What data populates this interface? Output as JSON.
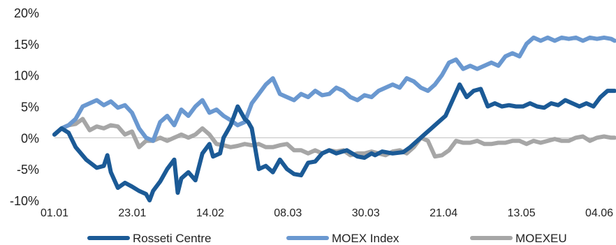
{
  "chart_data": {
    "type": "line",
    "title": "",
    "xlabel": "",
    "ylabel": "",
    "ylim": [
      -10,
      20
    ],
    "y_ticks": [
      20,
      15,
      10,
      5,
      0,
      -5,
      -10
    ],
    "y_tick_labels": [
      "20%",
      "15%",
      "10%",
      "5%",
      "0%",
      "-5%",
      "-10%"
    ],
    "x_ticks": [
      "01.01",
      "23.01",
      "14.02",
      "08.03",
      "30.03",
      "21.04",
      "13.05",
      "04.06"
    ],
    "grid": false,
    "legend_position": "bottom",
    "series": [
      {
        "name": "Rosseti Centre",
        "color": "#1b5a96",
        "x": [
          0,
          2,
          4,
          6,
          9,
          12,
          14,
          15,
          16,
          18,
          20,
          22,
          24,
          26,
          27,
          28,
          30,
          32,
          34,
          35,
          36,
          38,
          40,
          42,
          44,
          45,
          47,
          48,
          49,
          50,
          52,
          54,
          55,
          56,
          58,
          60,
          62,
          64,
          66,
          68,
          70,
          72,
          74,
          76,
          78,
          80,
          83,
          86,
          88,
          90,
          91,
          93,
          96,
          99,
          101,
          103,
          105,
          107,
          109,
          111,
          113,
          115,
          117,
          119,
          121,
          123,
          125,
          127,
          129,
          131,
          133,
          135,
          137,
          139,
          141,
          143,
          145,
          147,
          149,
          151,
          153,
          155,
          157,
          159
        ],
        "values": [
          0.5,
          1.5,
          0.8,
          -1.5,
          -3.5,
          -4.8,
          -4.5,
          -2.8,
          -5.5,
          -8.0,
          -7.2,
          -7.8,
          -8.5,
          -9.0,
          -10.0,
          -8.5,
          -7.0,
          -5.0,
          -3.5,
          -8.8,
          -6.5,
          -5.5,
          -6.8,
          -2.5,
          -1.0,
          -3.0,
          -2.5,
          0.0,
          1.0,
          2.0,
          5.0,
          3.0,
          2.5,
          1.5,
          -5.0,
          -4.5,
          -5.5,
          -3.5,
          -5.0,
          -5.8,
          -6.0,
          -4.0,
          -3.8,
          -2.5,
          -2.0,
          -2.5,
          -2.0,
          -3.0,
          -3.2,
          -2.5,
          -2.8,
          -2.2,
          -2.5,
          -2.3,
          -1.5,
          -0.5,
          0.5,
          1.5,
          2.5,
          3.5,
          6.0,
          8.5,
          6.5,
          7.5,
          7.8,
          5.0,
          5.5,
          5.0,
          5.2,
          5.0,
          5.0,
          5.5,
          5.0,
          4.8,
          5.5,
          5.2,
          6.0,
          5.5,
          5.0,
          5.5,
          5.0,
          6.5,
          7.5,
          7.5
        ]
      },
      {
        "name": "MOEX Index",
        "color": "#6a98d0",
        "x": [
          0,
          2,
          4,
          6,
          8,
          10,
          12,
          14,
          16,
          18,
          20,
          22,
          24,
          26,
          28,
          30,
          32,
          34,
          36,
          38,
          40,
          42,
          44,
          46,
          48,
          50,
          52,
          54,
          56,
          58,
          60,
          62,
          64,
          66,
          68,
          70,
          72,
          74,
          76,
          78,
          80,
          82,
          84,
          86,
          88,
          90,
          92,
          94,
          96,
          98,
          100,
          102,
          104,
          106,
          108,
          110,
          112,
          114,
          116,
          118,
          120,
          122,
          124,
          126,
          128,
          130,
          132,
          134,
          136,
          138,
          140,
          142,
          144,
          146,
          148,
          150,
          152,
          154,
          156,
          158,
          159
        ],
        "values": [
          0.5,
          1.5,
          2.0,
          3.0,
          5.0,
          5.5,
          6.0,
          5.2,
          5.8,
          4.8,
          5.2,
          4.0,
          1.5,
          0.0,
          -0.5,
          2.5,
          3.5,
          2.0,
          4.5,
          3.5,
          5.0,
          6.0,
          4.0,
          4.5,
          3.5,
          2.8,
          2.0,
          2.5,
          5.5,
          7.0,
          8.5,
          9.5,
          7.0,
          6.5,
          6.0,
          7.0,
          6.5,
          7.5,
          6.8,
          7.0,
          8.0,
          7.5,
          6.5,
          6.0,
          6.8,
          6.5,
          7.5,
          8.0,
          8.5,
          8.0,
          9.5,
          9.0,
          8.0,
          7.5,
          8.5,
          10.0,
          12.0,
          12.5,
          11.0,
          11.5,
          11.0,
          11.5,
          12.0,
          11.5,
          13.0,
          13.5,
          13.0,
          15.0,
          16.0,
          15.5,
          16.0,
          15.5,
          16.0,
          15.8,
          16.0,
          15.5,
          16.0,
          15.8,
          16.0,
          15.8,
          15.5
        ]
      },
      {
        "name": "MOEXEU",
        "color": "#a6a6a6",
        "x": [
          0,
          2,
          4,
          6,
          8,
          10,
          12,
          14,
          16,
          18,
          20,
          22,
          24,
          26,
          28,
          30,
          32,
          34,
          36,
          38,
          40,
          42,
          44,
          46,
          48,
          50,
          52,
          54,
          56,
          58,
          60,
          62,
          64,
          66,
          68,
          70,
          72,
          74,
          76,
          78,
          80,
          82,
          84,
          86,
          88,
          90,
          92,
          94,
          96,
          98,
          100,
          102,
          104,
          106,
          108,
          110,
          112,
          114,
          116,
          118,
          120,
          122,
          124,
          126,
          128,
          130,
          132,
          134,
          136,
          138,
          140,
          142,
          144,
          146,
          148,
          150,
          152,
          154,
          156,
          158,
          159
        ],
        "values": [
          0.5,
          1.5,
          2.0,
          2.2,
          3.0,
          1.2,
          1.8,
          1.5,
          2.0,
          1.8,
          0.5,
          1.0,
          -1.5,
          -0.5,
          -0.5,
          0.0,
          -0.5,
          0.0,
          0.5,
          0.0,
          0.5,
          1.5,
          0.5,
          -1.0,
          -1.2,
          -1.5,
          -1.3,
          -1.0,
          -1.2,
          -1.0,
          -1.5,
          -1.5,
          -1.2,
          -1.0,
          -2.0,
          -2.0,
          -2.5,
          -2.0,
          -2.5,
          -2.0,
          -2.2,
          -2.0,
          -2.8,
          -2.5,
          -2.5,
          -2.2,
          -2.5,
          -2.8,
          -2.2,
          -2.0,
          -2.5,
          -1.5,
          0.0,
          -0.5,
          -3.0,
          -2.8,
          -2.0,
          -0.5,
          -0.8,
          -0.8,
          -0.5,
          -1.0,
          -1.0,
          -0.8,
          -0.8,
          -0.5,
          -0.5,
          -1.0,
          -0.5,
          -0.8,
          -0.5,
          -0.2,
          -0.5,
          -0.5,
          0.0,
          0.2,
          -0.5,
          0.0,
          0.2,
          0.0,
          0.0
        ]
      }
    ]
  }
}
